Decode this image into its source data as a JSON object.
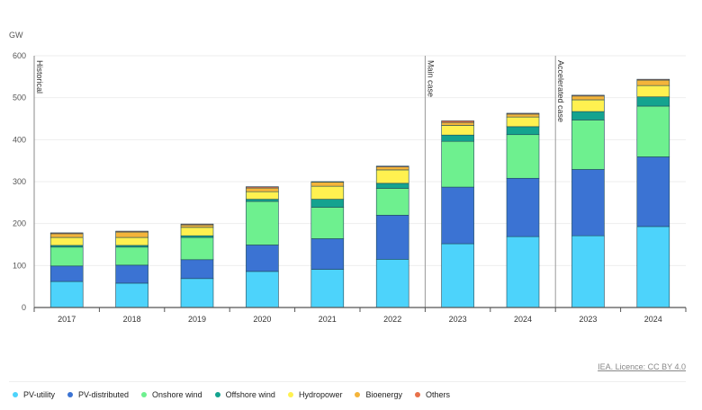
{
  "chart_data": {
    "type": "bar",
    "stacked": true,
    "ylabel": "GW",
    "ylim": [
      0,
      600
    ],
    "yticks": [
      0,
      100,
      200,
      300,
      400,
      500,
      600
    ],
    "grid": true,
    "legend_position": "bottom",
    "categories": [
      "2017",
      "2018",
      "2019",
      "2020",
      "2021",
      "2022",
      "2023",
      "2024",
      "2023",
      "2024"
    ],
    "annotations": [
      {
        "label": "Historical",
        "at_category_index": 0
      },
      {
        "label": "Main case",
        "at_category_index": 6
      },
      {
        "label": "Accelerated case",
        "at_category_index": 8
      }
    ],
    "series": [
      {
        "name": "PV-utility",
        "color": "#4dd3fb",
        "values": [
          62,
          58,
          69,
          86,
          91,
          115,
          152,
          169,
          171,
          193
        ]
      },
      {
        "name": "PV-distributed",
        "color": "#3b73d3",
        "values": [
          37,
          43,
          45,
          63,
          73,
          105,
          135,
          139,
          158,
          166
        ]
      },
      {
        "name": "Onshore wind",
        "color": "#6ef08f",
        "values": [
          45,
          43,
          53,
          104,
          75,
          64,
          109,
          104,
          118,
          121
        ]
      },
      {
        "name": "Offshore wind",
        "color": "#14a38f",
        "values": [
          4,
          4,
          4,
          5,
          19,
          12,
          15,
          19,
          20,
          22
        ]
      },
      {
        "name": "Hydropower",
        "color": "#fff150",
        "values": [
          19,
          19,
          20,
          18,
          31,
          32,
          23,
          23,
          28,
          27
        ]
      },
      {
        "name": "Bioenergy",
        "color": "#f4b43a",
        "values": [
          9,
          13,
          6,
          9,
          10,
          7,
          7,
          7,
          9,
          13
        ]
      },
      {
        "name": "Others",
        "color": "#e8714a",
        "values": [
          2,
          2,
          2,
          3,
          1,
          2,
          4,
          2,
          2,
          2
        ]
      }
    ]
  },
  "credit": "IEA. Licence: CC BY 4.0"
}
